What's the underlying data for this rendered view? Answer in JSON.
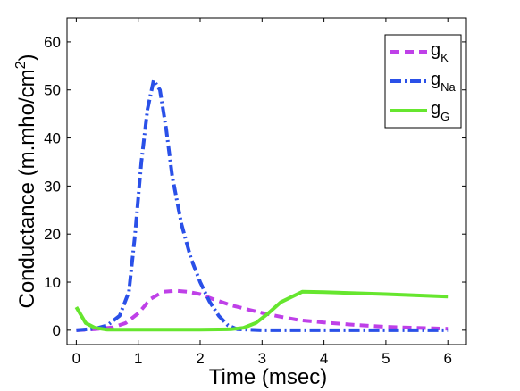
{
  "chart_data": {
    "type": "line",
    "title": "",
    "xlabel": "Time (msec)",
    "ylabel_main": "Conductance (m.mho/cm",
    "ylabel_sup": "2",
    "ylabel_end": ")",
    "xlim": [
      -0.15,
      6.3
    ],
    "ylim": [
      -3,
      65
    ],
    "xticks": [
      0,
      1,
      2,
      3,
      4,
      5,
      6
    ],
    "yticks": [
      0,
      10,
      20,
      30,
      40,
      50,
      60
    ],
    "grid": false,
    "legend_position": "top-right",
    "series": [
      {
        "name": "g",
        "sub": "K",
        "color": "#bf40e8",
        "style": "dashed",
        "x": [
          0,
          0.3,
          0.6,
          0.8,
          1.0,
          1.2,
          1.4,
          1.6,
          1.8,
          2.0,
          2.2,
          2.5,
          2.8,
          3.0,
          3.3,
          3.6,
          4.0,
          4.5,
          5.0,
          5.5,
          6.0
        ],
        "y": [
          0,
          0.2,
          0.6,
          1.5,
          3.5,
          6.5,
          8.0,
          8.2,
          8.0,
          7.5,
          6.5,
          5.2,
          4.2,
          3.6,
          2.8,
          2.1,
          1.6,
          1.1,
          0.7,
          0.5,
          0.3
        ]
      },
      {
        "name": "g",
        "sub": "Na",
        "color": "#2a50e8",
        "style": "dashdot",
        "x": [
          0,
          0.3,
          0.5,
          0.7,
          0.85,
          0.95,
          1.05,
          1.15,
          1.25,
          1.35,
          1.45,
          1.55,
          1.7,
          1.85,
          2.0,
          2.15,
          2.3,
          2.45,
          2.6,
          3.0,
          4.0,
          5.0,
          6.0
        ],
        "y": [
          0,
          0.3,
          1.0,
          3.0,
          8.0,
          20.0,
          35.0,
          46.0,
          52.0,
          50.0,
          42.0,
          32.0,
          22.0,
          15.0,
          10.0,
          6.0,
          3.0,
          1.0,
          0.2,
          0,
          0,
          0,
          0
        ]
      },
      {
        "name": "g",
        "sub": "G",
        "color": "#66e62e",
        "style": "solid",
        "x": [
          0,
          0.15,
          0.3,
          0.5,
          1.0,
          1.5,
          2.0,
          2.5,
          2.7,
          2.9,
          3.1,
          3.3,
          3.65,
          4.0,
          5.0,
          6.0
        ],
        "y": [
          4.8,
          1.5,
          0.5,
          0.1,
          0.1,
          0.1,
          0.1,
          0.2,
          0.5,
          1.5,
          3.5,
          5.8,
          8.0,
          7.9,
          7.5,
          7.0
        ]
      }
    ]
  }
}
